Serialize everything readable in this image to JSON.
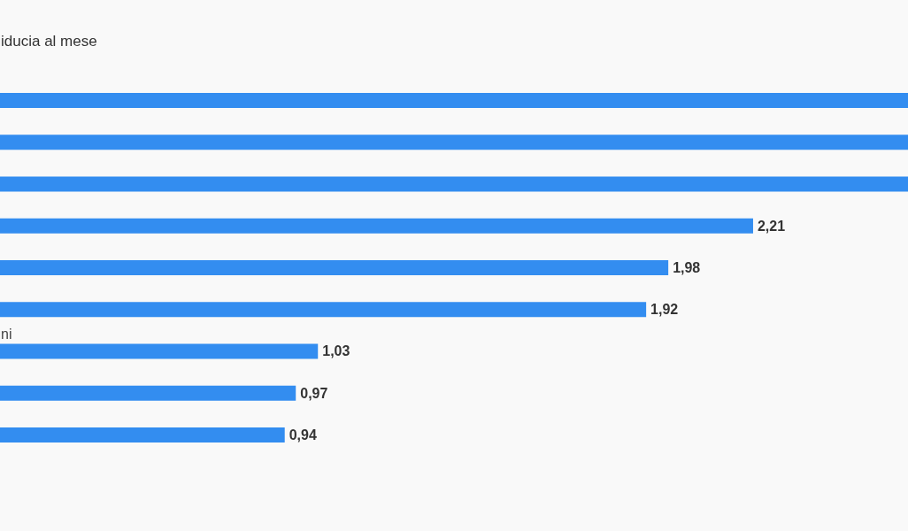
{
  "chart_data": {
    "type": "bar",
    "orientation": "horizontal",
    "title": "iducia al mese",
    "categories": [
      null,
      null,
      null,
      null,
      null,
      null,
      "ni",
      null,
      null
    ],
    "values": [
      2.63,
      2.63,
      2.63,
      2.21,
      1.98,
      1.92,
      1.03,
      0.97,
      0.94
    ],
    "value_labels": [
      null,
      null,
      null,
      "2,21",
      "1,98",
      "1,92",
      "1,03",
      "0,97",
      "0,94"
    ],
    "color": "#338df0",
    "xlim": [
      0,
      2.63
    ]
  }
}
